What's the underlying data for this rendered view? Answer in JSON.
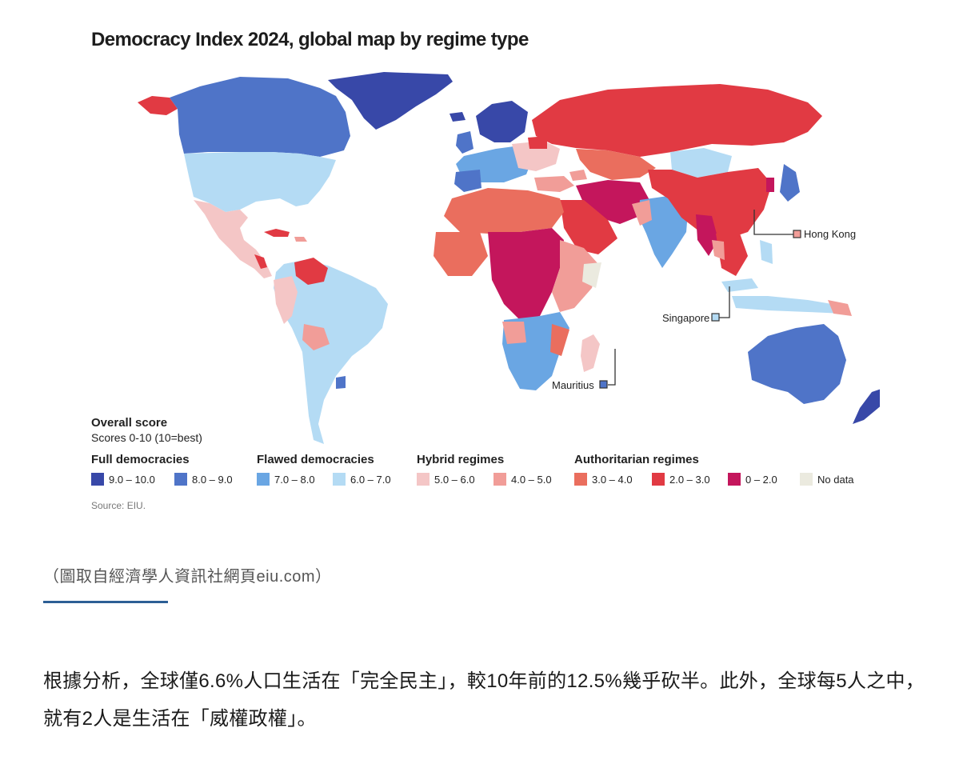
{
  "map": {
    "title": "Democracy Index 2024, global map by regime type",
    "callouts": [
      {
        "name": "Hong Kong",
        "color_key": "4.0 – 5.0"
      },
      {
        "name": "Singapore",
        "color_key": "6.0 – 7.0"
      },
      {
        "name": "Mauritius",
        "color_key": "8.0 – 9.0"
      }
    ],
    "legend": {
      "heading": "Overall score",
      "subheading": "Scores 0-10 (10=best)",
      "groups": [
        {
          "label": "Full democracies",
          "items": [
            {
              "label": "9.0 – 10.0",
              "color": "#3848a8"
            },
            {
              "label": "8.0 – 9.0",
              "color": "#4f74c8"
            }
          ]
        },
        {
          "label": "Flawed democracies",
          "items": [
            {
              "label": "7.0 – 8.0",
              "color": "#6aa6e3"
            },
            {
              "label": "6.0 – 7.0",
              "color": "#b4dbf4"
            }
          ]
        },
        {
          "label": "Hybrid regimes",
          "items": [
            {
              "label": "5.0 – 6.0",
              "color": "#f4c6c6"
            },
            {
              "label": "4.0 – 5.0",
              "color": "#f19d98"
            }
          ]
        },
        {
          "label": "Authoritarian regimes",
          "items": [
            {
              "label": "3.0 – 4.0",
              "color": "#ea6e5e"
            },
            {
              "label": "2.0 – 3.0",
              "color": "#e13a43"
            },
            {
              "label": "0 – 2.0",
              "color": "#c4165c"
            }
          ]
        }
      ],
      "no_data": {
        "label": "No data",
        "color": "#ebeadf"
      }
    },
    "source": "Source: EIU."
  },
  "caption": "（圖取自經濟學人資訊社網頁eiu.com）",
  "article": {
    "paragraph": "根據分析，全球僅6.6%人口生活在「完全民主」，較10年前的12.5%幾乎砍半。此外，全球每5人之中，就有2人是生活在「威權政權」。"
  }
}
